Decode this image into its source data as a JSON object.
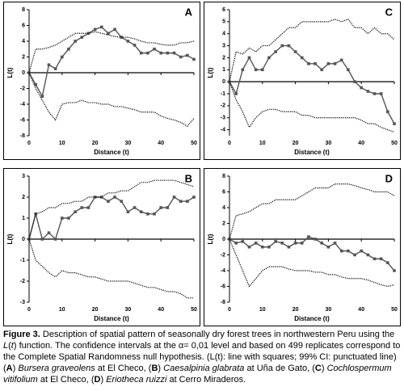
{
  "chart_data": [
    {
      "type": "line",
      "panel_label": "A",
      "xlabel": "Distance (t)",
      "ylabel": "L(t)",
      "x": [
        0,
        2,
        4,
        6,
        8,
        10,
        12,
        14,
        16,
        18,
        20,
        22,
        24,
        26,
        28,
        30,
        32,
        34,
        36,
        38,
        40,
        42,
        44,
        46,
        48,
        50
      ],
      "xlim": [
        0,
        50
      ],
      "xticks": [
        0,
        10,
        20,
        30,
        40,
        50
      ],
      "ylim": [
        -8,
        8
      ],
      "yticks": [
        -8,
        -6,
        -4,
        -2,
        0,
        2,
        4,
        6,
        8
      ],
      "series": [
        {
          "style": "markers",
          "color": "#555555",
          "values": [
            0,
            -1.5,
            -3,
            1,
            0.5,
            2,
            3,
            4,
            4.5,
            5,
            5.5,
            5.8,
            5,
            5.5,
            4.5,
            4,
            3.5,
            2.5,
            2.5,
            3,
            2.5,
            2.5,
            2.5,
            2,
            2.2,
            1.7
          ]
        },
        {
          "style": "dotted",
          "color": "#000000",
          "values": [
            0,
            3,
            3,
            3.2,
            3.5,
            4,
            4.5,
            5,
            5,
            5,
            5.2,
            5,
            4.8,
            4.6,
            4.5,
            4.5,
            4.3,
            4,
            3.8,
            3.8,
            3.6,
            3.5,
            3.5,
            3.8,
            3.8,
            4
          ]
        },
        {
          "style": "dotted",
          "color": "#000000",
          "values": [
            0,
            -2,
            -3.5,
            -5,
            -6,
            -4,
            -3.8,
            -3.8,
            -3.5,
            -3.8,
            -3.8,
            -4,
            -4,
            -4.3,
            -4.3,
            -4.5,
            -4.7,
            -5,
            -5,
            -5,
            -5.5,
            -5.8,
            -6,
            -6.3,
            -6.8,
            -5.8
          ]
        }
      ]
    },
    {
      "type": "line",
      "panel_label": "B",
      "xlabel": "Distance (t)",
      "ylabel": "L(t)",
      "x": [
        0,
        2,
        4,
        6,
        8,
        10,
        12,
        14,
        16,
        18,
        20,
        22,
        24,
        26,
        28,
        30,
        32,
        34,
        36,
        38,
        40,
        42,
        44,
        46,
        48,
        50
      ],
      "xlim": [
        0,
        50
      ],
      "xticks": [
        0,
        10,
        20,
        30,
        40,
        50
      ],
      "ylim": [
        -3,
        3
      ],
      "yticks": [
        -3,
        -2,
        -1,
        0,
        1,
        2,
        3
      ],
      "series": [
        {
          "style": "markers",
          "color": "#555555",
          "values": [
            0,
            1.2,
            0,
            0.3,
            0,
            1,
            1,
            1.3,
            1.5,
            1.5,
            2,
            2,
            1.8,
            2,
            1.8,
            1.3,
            1.5,
            1.3,
            1.2,
            1.2,
            1.5,
            1.5,
            2,
            1.8,
            1.8,
            2
          ]
        },
        {
          "style": "dotted",
          "color": "#000000",
          "values": [
            0,
            1.2,
            1.3,
            1.5,
            1.5,
            1.7,
            1.7,
            1.8,
            1.8,
            2,
            2,
            2,
            2.2,
            2.2,
            2.3,
            2.3,
            2.5,
            2.7,
            2.7,
            2.8,
            2.8,
            2.8,
            2.8,
            2.7,
            2.6,
            2.5
          ]
        },
        {
          "style": "dotted",
          "color": "#000000",
          "values": [
            0,
            -1,
            -1.3,
            -1.6,
            -1.8,
            -1.5,
            -1.6,
            -1.6,
            -1.7,
            -1.8,
            -1.8,
            -1.9,
            -2,
            -2,
            -2,
            -2,
            -2.1,
            -2.2,
            -2.3,
            -2.3,
            -2.4,
            -2.5,
            -2.5,
            -2.6,
            -2.8,
            -2.8
          ]
        }
      ]
    },
    {
      "type": "line",
      "panel_label": "C",
      "xlabel": "Distance (t)",
      "ylabel": "L(t)",
      "x": [
        0,
        2,
        4,
        6,
        8,
        10,
        12,
        14,
        16,
        18,
        20,
        22,
        24,
        26,
        28,
        30,
        32,
        34,
        36,
        38,
        40,
        42,
        44,
        46,
        48,
        50
      ],
      "xlim": [
        0,
        50
      ],
      "xticks": [
        0,
        10,
        20,
        30,
        40,
        50
      ],
      "ylim": [
        -4.5,
        6
      ],
      "yticks": [
        -4,
        -3,
        -2,
        -1,
        0,
        1,
        2,
        3,
        4,
        5,
        6
      ],
      "series": [
        {
          "style": "markers",
          "color": "#555555",
          "values": [
            0,
            -1,
            1,
            2,
            1,
            1,
            2,
            2.5,
            3,
            3,
            2.5,
            2,
            1.5,
            1.5,
            1,
            1.5,
            1.5,
            1.8,
            1,
            0,
            -0.5,
            -0.8,
            -1,
            -1,
            -2.5,
            -3.5
          ]
        },
        {
          "style": "dotted",
          "color": "#000000",
          "values": [
            0,
            2.5,
            2.3,
            2.8,
            2.5,
            3,
            3,
            3.5,
            4,
            4.5,
            4.5,
            5,
            5,
            5,
            5,
            5,
            5.2,
            5,
            5.2,
            4.5,
            4.5,
            4,
            4.5,
            4,
            4,
            3.5
          ]
        },
        {
          "style": "dotted",
          "color": "#000000",
          "values": [
            0,
            -1.5,
            -2.5,
            -3.8,
            -3,
            -2.5,
            -2.3,
            -2.3,
            -2.5,
            -2.5,
            -2.5,
            -2.8,
            -2.8,
            -3,
            -3,
            -3,
            -3,
            -3,
            -3,
            -3,
            -3.2,
            -3.5,
            -3.5,
            -3.8,
            -4,
            -4.2
          ]
        }
      ]
    },
    {
      "type": "line",
      "panel_label": "D",
      "xlabel": "Distance (t)",
      "ylabel": "L(t)",
      "x": [
        0,
        2,
        4,
        6,
        8,
        10,
        12,
        14,
        16,
        18,
        20,
        22,
        24,
        26,
        28,
        30,
        32,
        34,
        36,
        38,
        40,
        42,
        44,
        46,
        48,
        50
      ],
      "xlim": [
        0,
        50
      ],
      "xticks": [
        0,
        10,
        20,
        30,
        40,
        50
      ],
      "ylim": [
        -8,
        8
      ],
      "yticks": [
        -8,
        -6,
        -4,
        -2,
        0,
        2,
        4,
        6,
        8
      ],
      "series": [
        {
          "style": "markers",
          "color": "#555555",
          "values": [
            0,
            -0.5,
            -0.3,
            -1,
            -0.5,
            -1,
            -1,
            -0.3,
            -0.5,
            -1,
            -0.5,
            -0.5,
            0.3,
            0,
            -0.5,
            -1,
            -0.5,
            -1.5,
            -1.5,
            -2,
            -1.5,
            -2,
            -2.5,
            -2.5,
            -3,
            -4
          ]
        },
        {
          "style": "dotted",
          "color": "#000000",
          "values": [
            0,
            3,
            3.2,
            3.5,
            4,
            4.5,
            4.5,
            5,
            5,
            5,
            5,
            5.5,
            6,
            6.5,
            6.5,
            6.5,
            7,
            7,
            7,
            6.8,
            6.5,
            6.3,
            6,
            6,
            6,
            5.5
          ]
        },
        {
          "style": "dotted",
          "color": "#000000",
          "values": [
            0,
            -2,
            -4,
            -6,
            -5,
            -4,
            -3.5,
            -3.5,
            -3.5,
            -3.8,
            -4,
            -4,
            -4,
            -4.2,
            -4.2,
            -4.5,
            -4.5,
            -4.8,
            -5,
            -5,
            -5,
            -5.2,
            -5.5,
            -5.8,
            -6,
            -5.8
          ]
        }
      ]
    }
  ],
  "caption": [
    {
      "text": "Figure 3.",
      "style": "bold"
    },
    {
      "text": " Description of spatial pattern of seasonally dry forest trees in northwestern Peru using the ",
      "style": "plain"
    },
    {
      "text": "L",
      "style": "italic"
    },
    {
      "text": "(",
      "style": "plain"
    },
    {
      "text": "t",
      "style": "italic"
    },
    {
      "text": ") function. The confidence intervals at the α= 0,01 level and based on 499 replicates correspond to the Complete Spatial Randomness null hypothesis. (L(t): line with squares; 99% CI: punctuated line)  (",
      "style": "plain"
    },
    {
      "text": "A",
      "style": "bold"
    },
    {
      "text": ") ",
      "style": "plain"
    },
    {
      "text": "Bursera graveolens",
      "style": "italic"
    },
    {
      "text": " at El Checo, (",
      "style": "plain"
    },
    {
      "text": "B",
      "style": "bold"
    },
    {
      "text": ") ",
      "style": "plain"
    },
    {
      "text": "Caesalpinia glabrata",
      "style": "italic"
    },
    {
      "text": " at Uña de Gato, (",
      "style": "plain"
    },
    {
      "text": "C",
      "style": "bold"
    },
    {
      "text": ") ",
      "style": "plain"
    },
    {
      "text": "Cochlospermum vitifolium",
      "style": "italic"
    },
    {
      "text": " at El Checo, (",
      "style": "plain"
    },
    {
      "text": "D",
      "style": "bold"
    },
    {
      "text": ") ",
      "style": "plain"
    },
    {
      "text": "Eriotheca ruizzi",
      "style": "italic"
    },
    {
      "text": " at Cerro Miraderos.",
      "style": "plain"
    }
  ]
}
